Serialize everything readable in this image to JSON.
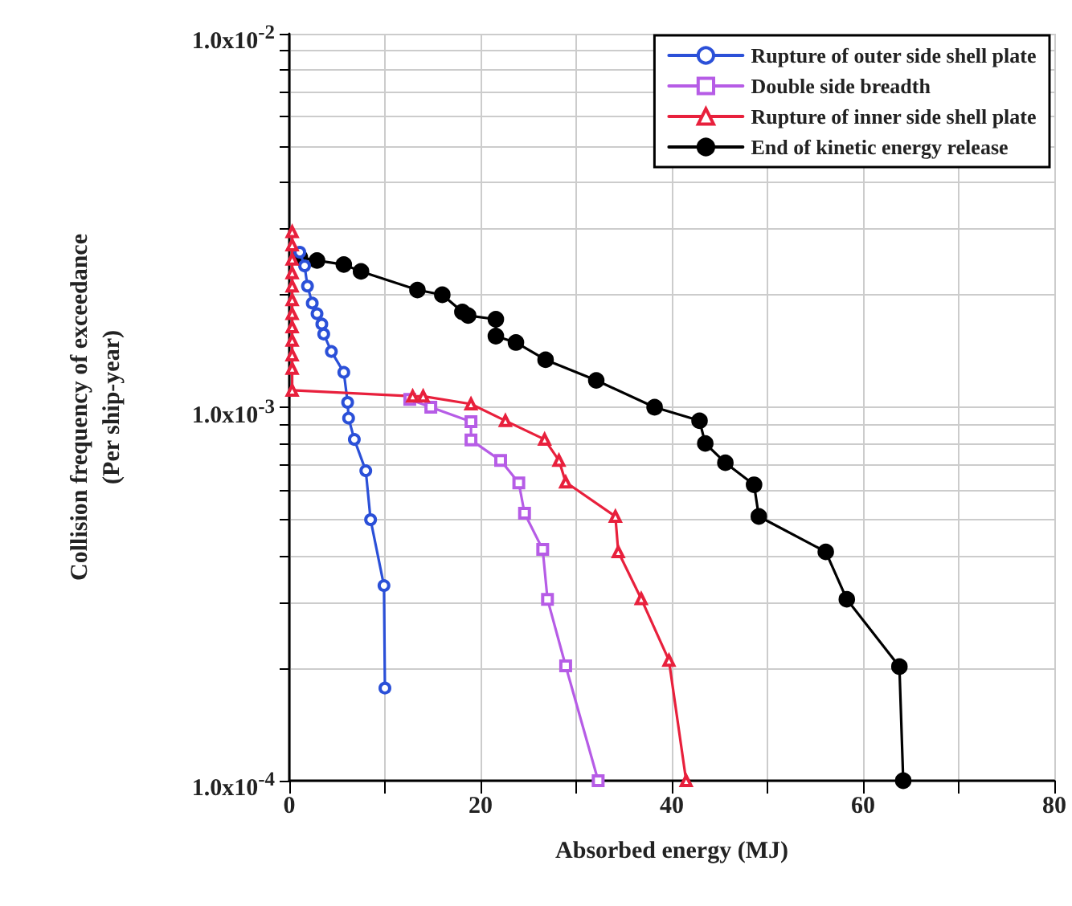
{
  "chart_data": {
    "type": "line",
    "xlabel": "Absorbed energy (MJ)",
    "ylabel": "Collision frequency of exceedance\n(Per ship-year)",
    "log": "y",
    "grid": true,
    "legend": "top right",
    "line_style": "solid",
    "xlim": [
      0,
      80
    ],
    "xticks": [
      0,
      {
        "value": 10,
        "label": null
      },
      20,
      {
        "value": 30,
        "label": null
      },
      40,
      {
        "value": 50,
        "label": null
      },
      60,
      {
        "value": 70,
        "label": null
      },
      80
    ],
    "ylim": [
      0.0001,
      0.01
    ],
    "yticks": [
      {
        "value": 0.0001,
        "label": "1.0x10$^{-4}$"
      },
      {
        "value": 0.0002,
        "label": null
      },
      {
        "value": 0.0003,
        "label": null
      },
      {
        "value": 0.0004,
        "label": null
      },
      {
        "value": 0.0005,
        "label": null
      },
      {
        "value": 0.0006,
        "label": null
      },
      {
        "value": 0.0007,
        "label": null
      },
      {
        "value": 0.0008,
        "label": null
      },
      {
        "value": 0.0009,
        "label": null
      },
      {
        "value": 0.001,
        "label": "1.0x10$^{-3}$"
      },
      {
        "value": 0.002,
        "label": null
      },
      {
        "value": 0.003,
        "label": null
      },
      {
        "value": 0.004,
        "label": null
      },
      {
        "value": 0.005,
        "label": null
      },
      {
        "value": 0.006,
        "label": null
      },
      {
        "value": 0.007,
        "label": null
      },
      {
        "value": 0.008,
        "label": null
      },
      {
        "value": 0.009,
        "label": null
      },
      {
        "value": 0.01,
        "label": "1.0x10$^{-2}$"
      }
    ],
    "series": [
      {
        "name": "Rupture of outer side shell plate",
        "color": "#2b50d8",
        "marker": "circle",
        "x": [
          1.1,
          1.6,
          1.9,
          2.4,
          2.9,
          3.4,
          3.6,
          4.4,
          5.7,
          6.1,
          6.2,
          6.8,
          8.0,
          8.5,
          9.9,
          10.0
        ],
        "values": [
          0.0026,
          0.00239,
          0.00211,
          0.0019,
          0.00178,
          0.00167,
          0.00157,
          0.00141,
          0.00124,
          0.00103,
          0.000935,
          0.00082,
          0.000676,
          0.0005,
          0.000333,
          0.000177
        ]
      },
      {
        "name": "Double side breadth",
        "color": "#b65ce6",
        "marker": "square",
        "x": [
          12.6,
          14.8,
          19.0,
          19.0,
          22.1,
          24.0,
          24.6,
          26.5,
          27.0,
          28.9,
          32.3
        ],
        "values": [
          0.00105,
          0.001,
          0.000915,
          0.000817,
          0.00072,
          0.000627,
          0.00052,
          0.000416,
          0.000306,
          0.000203,
          0.0001
        ]
      },
      {
        "name": "Rupture of inner side shell plate",
        "color": "#e8203c",
        "marker": "triangle",
        "x": [
          0.3,
          0.3,
          0.3,
          0.3,
          0.3,
          0.3,
          0.3,
          0.3,
          0.3,
          0.3,
          0.3,
          0.3,
          12.9,
          14.0,
          19.0,
          22.6,
          26.7,
          28.2,
          28.9,
          34.1,
          34.4,
          36.8,
          39.7,
          41.5
        ],
        "values": [
          0.00295,
          0.00272,
          0.00249,
          0.00229,
          0.00211,
          0.00194,
          0.00178,
          0.00164,
          0.00151,
          0.00138,
          0.00127,
          0.00111,
          0.00107,
          0.00107,
          0.00102,
          0.00092,
          0.00082,
          0.00072,
          0.00063,
          0.00051,
          0.00041,
          0.000307,
          0.00021,
          0.0001
        ]
      },
      {
        "name": "End of kinetic energy release",
        "color": "#000000",
        "marker": "filled_circle",
        "x": [
          1.1,
          2.9,
          5.7,
          7.5,
          13.4,
          16.0,
          18.1,
          18.7,
          21.6,
          21.6,
          23.7,
          26.8,
          32.1,
          38.2,
          42.9,
          43.5,
          45.6,
          48.6,
          49.1,
          56.1,
          58.3,
          63.8,
          64.2
        ],
        "values": [
          0.00252,
          0.00247,
          0.00241,
          0.00231,
          0.00206,
          0.002,
          0.0018,
          0.00176,
          0.00172,
          0.00155,
          0.00149,
          0.00134,
          0.00118,
          0.001,
          0.00092,
          0.0008,
          0.00071,
          0.00062,
          0.00051,
          0.00041,
          0.000306,
          0.000202,
          0.0001
        ]
      }
    ]
  }
}
